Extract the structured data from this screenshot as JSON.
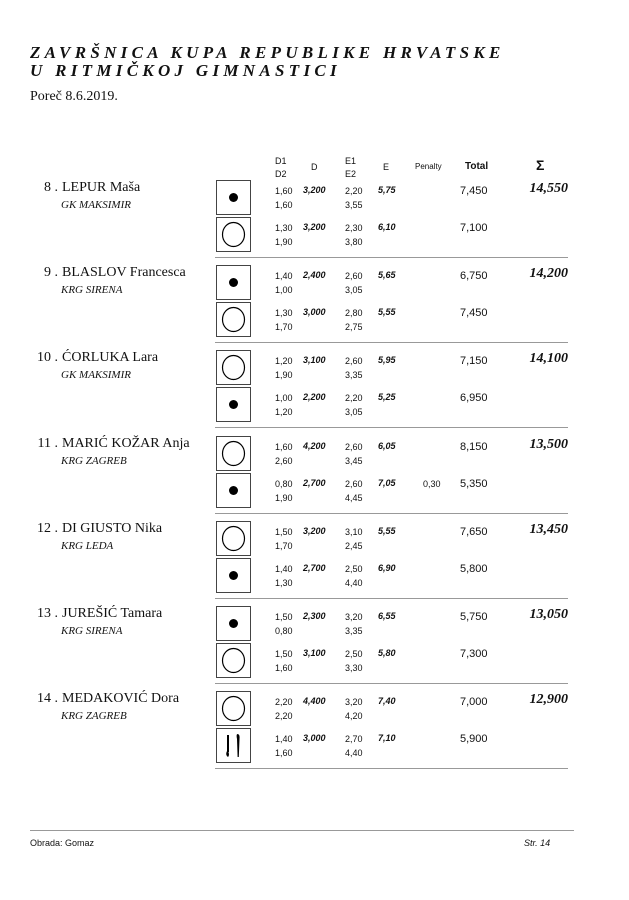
{
  "header": {
    "title_line1": "ZAVRŠNICA KUPA REPUBLIKE HRVATSKE",
    "title_line2": "U RITMIČKOJ GIMNASTICI",
    "date": "Poreč 8.6.2019."
  },
  "columns": {
    "d1": "D1",
    "d2": "D2",
    "d": "D",
    "e1": "E1",
    "e2": "E2",
    "e": "E",
    "penalty": "Penalty",
    "total": "Total",
    "sum": "Σ"
  },
  "athletes": [
    {
      "rank": "8 .",
      "name": "LEPUR Maša",
      "club": "GK MAKSIMIR",
      "sum": "14,550",
      "routines": [
        {
          "apparatus": "ball-icon",
          "d1": "1,60",
          "d2": "1,60",
          "d": "3,200",
          "e1": "2,20",
          "e2": "3,55",
          "e": "5,75",
          "penalty": "",
          "total": "7,450"
        },
        {
          "apparatus": "hoop-icon",
          "d1": "1,30",
          "d2": "1,90",
          "d": "3,200",
          "e1": "2,30",
          "e2": "3,80",
          "e": "6,10",
          "penalty": "",
          "total": "7,100"
        }
      ]
    },
    {
      "rank": "9 .",
      "name": "BLASLOV Francesca",
      "club": "KRG SIRENA",
      "sum": "14,200",
      "routines": [
        {
          "apparatus": "ball-icon",
          "d1": "1,40",
          "d2": "1,00",
          "d": "2,400",
          "e1": "2,60",
          "e2": "3,05",
          "e": "5,65",
          "penalty": "",
          "total": "6,750"
        },
        {
          "apparatus": "hoop-icon",
          "d1": "1,30",
          "d2": "1,70",
          "d": "3,000",
          "e1": "2,80",
          "e2": "2,75",
          "e": "5,55",
          "penalty": "",
          "total": "7,450"
        }
      ]
    },
    {
      "rank": "10 .",
      "name": "ĆORLUKA Lara",
      "club": "GK MAKSIMIR",
      "sum": "14,100",
      "routines": [
        {
          "apparatus": "hoop-icon",
          "d1": "1,20",
          "d2": "1,90",
          "d": "3,100",
          "e1": "2,60",
          "e2": "3,35",
          "e": "5,95",
          "penalty": "",
          "total": "7,150"
        },
        {
          "apparatus": "ball-icon",
          "d1": "1,00",
          "d2": "1,20",
          "d": "2,200",
          "e1": "2,20",
          "e2": "3,05",
          "e": "5,25",
          "penalty": "",
          "total": "6,950"
        }
      ]
    },
    {
      "rank": "11 .",
      "name": "MARIĆ KOŽAR Anja",
      "club": "KRG ZAGREB",
      "sum": "13,500",
      "routines": [
        {
          "apparatus": "hoop-icon",
          "d1": "1,60",
          "d2": "2,60",
          "d": "4,200",
          "e1": "2,60",
          "e2": "3,45",
          "e": "6,05",
          "penalty": "",
          "total": "8,150"
        },
        {
          "apparatus": "ball-icon",
          "d1": "0,80",
          "d2": "1,90",
          "d": "2,700",
          "e1": "2,60",
          "e2": "4,45",
          "e": "7,05",
          "penalty": "0,30",
          "total": "5,350"
        }
      ]
    },
    {
      "rank": "12 .",
      "name": "DI GIUSTO Nika",
      "club": "KRG LEDA",
      "sum": "13,450",
      "routines": [
        {
          "apparatus": "hoop-icon",
          "d1": "1,50",
          "d2": "1,70",
          "d": "3,200",
          "e1": "3,10",
          "e2": "2,45",
          "e": "5,55",
          "penalty": "",
          "total": "7,650"
        },
        {
          "apparatus": "ball-icon",
          "d1": "1,40",
          "d2": "1,30",
          "d": "2,700",
          "e1": "2,50",
          "e2": "4,40",
          "e": "6,90",
          "penalty": "",
          "total": "5,800"
        }
      ]
    },
    {
      "rank": "13 .",
      "name": "JUREŠIĆ Tamara",
      "club": "KRG SIRENA",
      "sum": "13,050",
      "routines": [
        {
          "apparatus": "ball-icon",
          "d1": "1,50",
          "d2": "0,80",
          "d": "2,300",
          "e1": "3,20",
          "e2": "3,35",
          "e": "6,55",
          "penalty": "",
          "total": "5,750"
        },
        {
          "apparatus": "hoop-icon",
          "d1": "1,50",
          "d2": "1,60",
          "d": "3,100",
          "e1": "2,50",
          "e2": "3,30",
          "e": "5,80",
          "penalty": "",
          "total": "7,300"
        }
      ]
    },
    {
      "rank": "14 .",
      "name": "MEDAKOVIĆ Dora",
      "club": "KRG ZAGREB",
      "sum": "12,900",
      "routines": [
        {
          "apparatus": "hoop-icon",
          "d1": "2,20",
          "d2": "2,20",
          "d": "4,400",
          "e1": "3,20",
          "e2": "4,20",
          "e": "7,40",
          "penalty": "",
          "total": "7,000"
        },
        {
          "apparatus": "clubs-icon",
          "d1": "1,40",
          "d2": "1,60",
          "d": "3,000",
          "e1": "2,70",
          "e2": "4,40",
          "e": "7,10",
          "penalty": "",
          "total": "5,900"
        }
      ]
    }
  ],
  "footer": {
    "left": "Obrada: Gomaz",
    "right": "Str. 14"
  }
}
